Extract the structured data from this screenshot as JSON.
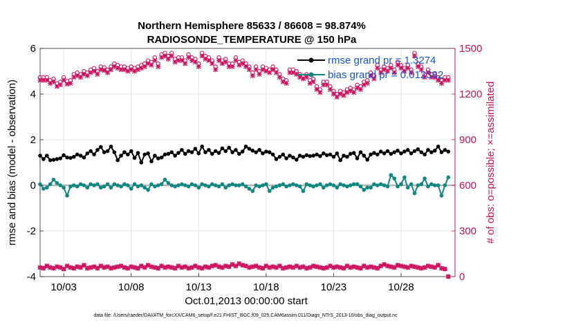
{
  "chart_data": {
    "type": "line",
    "title": "Northern Hemisphere 85633 / 86608 = 98.874%",
    "subtitle": "RADIOSONDE_TEMPERATURE @ 150 hPa",
    "xlabel": "Oct.01,2013 00:00:00 start",
    "ylabel_left": "rmse and bias (model - observation)",
    "ylabel_right": "# of obs: o=possible; ×=assimilated",
    "footnote": "data file: /Users/raeder/DAI/ATM_forcXX/CAM6_setup/f.e21.FHIST_BGC.f09_025.CAM6assim.011/Diags_NTrS_2013-10/obs_diag_output.nc",
    "x_unit": "days since Oct 01 2013 00:00",
    "xlim": [
      0.25,
      31.0
    ],
    "ylim_left": [
      -4,
      6
    ],
    "ylim_right": [
      0,
      1500
    ],
    "x_tick_values": [
      2,
      7,
      12,
      17,
      22,
      27
    ],
    "x_tick_labels": [
      "10/03",
      "10/08",
      "10/13",
      "10/18",
      "10/23",
      "10/28"
    ],
    "y_left_ticks": [
      -4,
      -2,
      0,
      2,
      4,
      6
    ],
    "y_left_tick_labels": [
      "-4",
      "-2",
      "0",
      "2",
      "4",
      "6"
    ],
    "y_right_ticks": [
      0,
      300,
      600,
      900,
      1200,
      1500
    ],
    "y_right_tick_labels": [
      "0",
      "300",
      "600",
      "900",
      "1200",
      "1500"
    ],
    "grid": true,
    "legend_position": "top-right",
    "n_points": 122,
    "step_days": 0.25,
    "start_day": 0.25,
    "series": [
      {
        "name": "rmse grand pr = 1.3274",
        "axis": "left",
        "color": "#000000",
        "marker": "dot",
        "values": [
          1.3,
          1.15,
          1.3,
          1.1,
          1.12,
          1.15,
          1.18,
          1.32,
          1.22,
          1.2,
          1.25,
          1.35,
          1.3,
          1.22,
          1.4,
          1.5,
          1.35,
          1.55,
          1.68,
          1.45,
          1.5,
          1.7,
          1.45,
          1.1,
          1.3,
          1.45,
          1.35,
          1.5,
          1.2,
          1.42,
          1.0,
          1.35,
          1.4,
          1.05,
          1.3,
          1.18,
          1.22,
          1.35,
          1.38,
          1.45,
          1.3,
          1.42,
          1.55,
          1.38,
          1.5,
          1.45,
          1.6,
          1.4,
          1.7,
          1.45,
          1.55,
          1.38,
          1.5,
          1.42,
          1.62,
          1.5,
          1.65,
          1.45,
          1.55,
          1.38,
          1.48,
          1.7,
          1.6,
          1.52,
          1.45,
          1.55,
          1.4,
          1.48,
          1.45,
          1.35,
          1.15,
          1.25,
          1.35,
          1.18,
          1.3,
          1.22,
          1.12,
          1.3,
          1.25,
          1.32,
          1.28,
          1.3,
          1.35,
          1.28,
          1.4,
          1.32,
          1.35,
          1.25,
          1.4,
          1.1,
          1.3,
          1.25,
          1.38,
          1.42,
          1.18,
          1.45,
          1.3,
          1.12,
          1.35,
          1.42,
          1.35,
          1.48,
          1.4,
          1.5,
          1.38,
          1.45,
          1.52,
          1.4,
          1.48,
          1.55,
          1.4,
          1.5,
          1.58,
          1.45,
          1.35,
          1.55,
          1.45,
          1.52,
          1.7,
          1.45,
          1.55,
          1.48
        ]
      },
      {
        "name": "bias grand pr = 0.012382",
        "axis": "left",
        "color": "#118780",
        "marker": "dot",
        "values": [
          0.05,
          -0.15,
          -0.1,
          0.05,
          0.25,
          0.1,
          0.0,
          -0.1,
          -0.45,
          -0.05,
          0.0,
          -0.05,
          0.05,
          0.0,
          -0.1,
          0.05,
          0.0,
          0.05,
          -0.1,
          -0.05,
          0.05,
          -0.1,
          0.05,
          0.0,
          -0.05,
          0.05,
          0.0,
          -0.15,
          0.05,
          -0.05,
          0.0,
          -0.1,
          -0.2,
          0.05,
          -0.05,
          0.0,
          0.05,
          0.25,
          0.1,
          0.0,
          -0.05,
          0.0,
          0.05,
          0.0,
          -0.05,
          0.05,
          0.0,
          -0.1,
          0.05,
          0.0,
          -0.05,
          0.05,
          0.0,
          -0.05,
          0.05,
          -0.1,
          0.0,
          0.05,
          0.0,
          0.0,
          0.05,
          -0.05,
          -0.15,
          -0.25,
          0.0,
          -0.05,
          0.0,
          0.05,
          -0.25,
          -0.1,
          -0.05,
          0.0,
          0.05,
          -0.05,
          0.0,
          0.05,
          0.0,
          -0.05,
          -0.25,
          0.05,
          0.0,
          -0.05,
          0.0,
          0.05,
          -0.1,
          0.0,
          0.05,
          0.0,
          -0.1,
          0.05,
          0.0,
          -0.05,
          0.0,
          0.05,
          0.05,
          -0.05,
          -0.2,
          -0.1,
          -0.1,
          0.05,
          0.0,
          0.05,
          0.0,
          -0.05,
          0.45,
          0.3,
          -0.05,
          0.05,
          0.35,
          -0.1,
          0.05,
          -0.35,
          0.0,
          0.05,
          0.3,
          -0.05,
          0.05,
          0.0,
          0.0,
          -0.45,
          0.0,
          0.35
        ]
      },
      {
        "name": "possible",
        "axis": "right",
        "color": "#cc0f5f",
        "marker": "o",
        "values": [
          1310,
          1310,
          1310,
          1290,
          1300,
          1270,
          1280,
          1310,
          1285,
          1290,
          1330,
          1340,
          1330,
          1350,
          1340,
          1360,
          1370,
          1350,
          1380,
          1375,
          1360,
          1380,
          1400,
          1390,
          1380,
          1380,
          1370,
          1380,
          1370,
          1380,
          1390,
          1400,
          1420,
          1410,
          1440,
          1400,
          1460,
          1470,
          1450,
          1470,
          1430,
          1440,
          1440,
          1420,
          1460,
          1440,
          1430,
          1400,
          1470,
          1450,
          1440,
          1420,
          1380,
          1440,
          1420,
          1430,
          1400,
          1400,
          1440,
          1410,
          1420,
          1400,
          1380,
          1340,
          1380,
          1350,
          1380,
          1370,
          1360,
          1380,
          1360,
          1330,
          1300,
          1290,
          1360,
          1360,
          1350,
          1330,
          1320,
          1330,
          1290,
          1300,
          1250,
          1230,
          1280,
          1280,
          1250,
          1220,
          1200,
          1220,
          1210,
          1230,
          1240,
          1230,
          1260,
          1250,
          1280,
          1290,
          1340,
          1320,
          1390,
          1360,
          1380,
          1370,
          1390,
          1360,
          1410,
          1390,
          1370,
          1390,
          1360,
          1470,
          1400,
          1380,
          1330,
          1360,
          1330,
          1330,
          1310,
          1290,
          1310,
          1310
        ]
      },
      {
        "name": "assimilated",
        "axis": "right",
        "color": "#cc0f5f",
        "marker": "x",
        "values": [
          1290,
          1290,
          1290,
          1270,
          1280,
          1250,
          1260,
          1290,
          1265,
          1270,
          1310,
          1320,
          1310,
          1330,
          1320,
          1340,
          1350,
          1330,
          1360,
          1355,
          1340,
          1360,
          1380,
          1370,
          1360,
          1360,
          1350,
          1360,
          1350,
          1360,
          1370,
          1380,
          1400,
          1390,
          1420,
          1380,
          1440,
          1450,
          1430,
          1450,
          1410,
          1420,
          1420,
          1400,
          1440,
          1420,
          1410,
          1380,
          1450,
          1430,
          1420,
          1400,
          1360,
          1420,
          1400,
          1410,
          1380,
          1380,
          1420,
          1390,
          1400,
          1380,
          1360,
          1320,
          1360,
          1330,
          1360,
          1350,
          1340,
          1360,
          1340,
          1310,
          1280,
          1270,
          1340,
          1340,
          1330,
          1310,
          1300,
          1310,
          1270,
          1280,
          1230,
          1210,
          1260,
          1260,
          1230,
          1200,
          1180,
          1200,
          1190,
          1210,
          1220,
          1210,
          1240,
          1230,
          1260,
          1270,
          1320,
          1300,
          1370,
          1340,
          1360,
          1350,
          1370,
          1340,
          1390,
          1370,
          1350,
          1370,
          1340,
          1450,
          1380,
          1360,
          1310,
          1340,
          1310,
          1310,
          1290,
          1270,
          1290,
          1290
        ]
      },
      {
        "name": "possible (low)",
        "axis": "right",
        "color": "#cc0f5f",
        "marker": "o",
        "values": [
          60,
          55,
          70,
          60,
          55,
          65,
          60,
          50,
          70,
          60,
          55,
          65,
          60,
          75,
          55,
          60,
          65,
          55,
          70,
          60,
          65,
          55,
          60,
          65,
          70,
          60,
          55,
          65,
          60,
          55,
          70,
          60,
          75,
          65,
          60,
          55,
          70,
          60,
          65,
          60,
          55,
          70,
          60,
          65,
          55,
          60,
          70,
          60,
          55,
          65,
          60,
          70,
          75,
          65,
          60,
          70,
          65,
          80,
          70,
          85,
          75,
          70,
          60,
          65,
          70,
          60,
          55,
          70,
          60,
          65,
          60,
          70,
          55,
          60,
          65,
          60,
          70,
          60,
          65,
          55,
          60,
          70,
          65,
          60,
          55,
          60,
          70,
          60,
          65,
          60,
          55,
          70,
          60,
          65,
          60,
          55,
          70,
          60,
          65,
          60,
          55,
          70,
          80,
          70,
          65,
          60,
          75,
          70,
          65,
          60,
          70,
          65,
          60,
          55,
          60,
          70,
          65,
          60,
          75,
          55,
          50,
          0
        ]
      },
      {
        "name": "assimilated (low)",
        "axis": "right",
        "color": "#cc0f5f",
        "marker": "x",
        "values": [
          60,
          55,
          70,
          60,
          55,
          65,
          60,
          50,
          70,
          60,
          55,
          65,
          60,
          75,
          55,
          60,
          65,
          55,
          70,
          60,
          65,
          55,
          60,
          65,
          70,
          60,
          55,
          65,
          60,
          55,
          70,
          60,
          75,
          65,
          60,
          55,
          70,
          60,
          65,
          60,
          55,
          70,
          60,
          65,
          55,
          60,
          70,
          60,
          55,
          65,
          60,
          70,
          75,
          65,
          60,
          70,
          65,
          80,
          70,
          85,
          75,
          70,
          60,
          65,
          70,
          60,
          55,
          70,
          60,
          65,
          60,
          70,
          55,
          60,
          65,
          60,
          70,
          60,
          65,
          55,
          60,
          70,
          65,
          60,
          55,
          60,
          70,
          60,
          65,
          60,
          55,
          70,
          60,
          65,
          60,
          55,
          70,
          60,
          65,
          60,
          55,
          70,
          80,
          70,
          65,
          60,
          75,
          70,
          65,
          60,
          70,
          65,
          60,
          55,
          60,
          70,
          65,
          60,
          75,
          55,
          50,
          0
        ]
      }
    ]
  }
}
